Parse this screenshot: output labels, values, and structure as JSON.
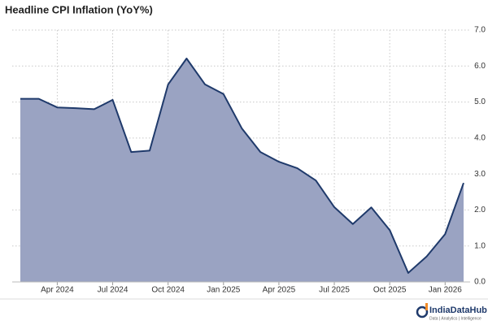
{
  "chart_data": {
    "type": "area",
    "title": "Headline CPI Inflation (YoY%)",
    "x": [
      "2024-02",
      "2024-03",
      "2024-04",
      "2024-05",
      "2024-06",
      "2024-07",
      "2024-08",
      "2024-09",
      "2024-10",
      "2024-11",
      "2024-12",
      "2025-01",
      "2025-02",
      "2025-03",
      "2025-04",
      "2025-05",
      "2025-06",
      "2025-07",
      "2025-08",
      "2025-09",
      "2025-10",
      "2025-11",
      "2025-12",
      "2026-01",
      "2026-02"
    ],
    "series": [
      {
        "name": "Headline CPI Inflation",
        "color": "#1f3a6b",
        "fill": "#9aa3c2",
        "values": [
          5.09,
          5.09,
          4.85,
          4.83,
          4.8,
          5.06,
          3.61,
          3.65,
          5.49,
          6.21,
          5.49,
          5.22,
          4.26,
          3.61,
          3.34,
          3.16,
          2.82,
          2.08,
          1.61,
          2.07,
          1.44,
          0.25,
          0.71,
          1.33,
          2.75
        ]
      }
    ],
    "xticks": [
      {
        "value": "2024-04",
        "label": "Apr 2024"
      },
      {
        "value": "2024-07",
        "label": "Jul 2024"
      },
      {
        "value": "2024-10",
        "label": "Oct 2024"
      },
      {
        "value": "2025-01",
        "label": "Jan 2025"
      },
      {
        "value": "2025-04",
        "label": "Apr 2025"
      },
      {
        "value": "2025-07",
        "label": "Jul 2025"
      },
      {
        "value": "2025-10",
        "label": "Oct 2025"
      },
      {
        "value": "2026-01",
        "label": "Jan 2026"
      }
    ],
    "ylim": [
      0,
      7
    ],
    "yticks": [
      {
        "value": 0,
        "label": "0.0"
      },
      {
        "value": 1,
        "label": "1.0"
      },
      {
        "value": 2,
        "label": "2.0"
      },
      {
        "value": 3,
        "label": "3.0"
      },
      {
        "value": 4,
        "label": "4.0"
      },
      {
        "value": 5,
        "label": "5.0"
      },
      {
        "value": 6,
        "label": "6.0"
      },
      {
        "value": 7,
        "label": "7.0"
      }
    ],
    "grid": true,
    "brand": {
      "name": "IndiaDataHub",
      "tagline": "Data | Analytics | Intelligence"
    }
  }
}
